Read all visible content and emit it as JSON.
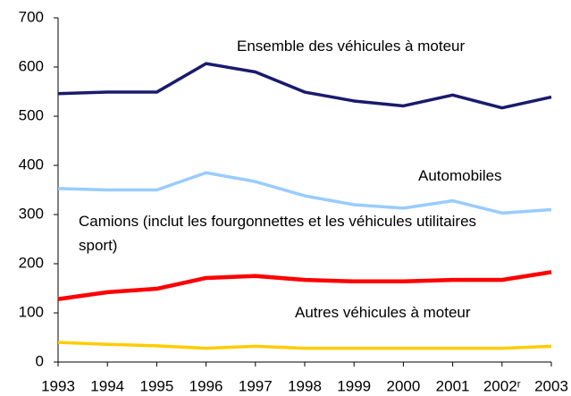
{
  "chart_data": {
    "type": "line",
    "categories": [
      "1993",
      "1994",
      "1995",
      "1996",
      "1997",
      "1998",
      "1999",
      "2000",
      "2001",
      "2002ʳ",
      "2003"
    ],
    "series": [
      {
        "name": "Ensemble des véhicules à moteur",
        "color": "#1a1a6e",
        "values": [
          546,
          549,
          549,
          607,
          590,
          549,
          531,
          521,
          543,
          517,
          539
        ]
      },
      {
        "name": "Automobiles",
        "color": "#99ccff",
        "values": [
          353,
          350,
          350,
          385,
          367,
          338,
          320,
          313,
          328,
          303,
          310
        ]
      },
      {
        "name": "Camions (inclut les fourgonnettes et les véhicules utilitaires sport)",
        "color": "#ff0000",
        "values": [
          128,
          142,
          149,
          171,
          175,
          167,
          164,
          164,
          167,
          167,
          183
        ]
      },
      {
        "name": "Autres véhicules à moteur",
        "color": "#ffcc00",
        "values": [
          40,
          36,
          33,
          28,
          32,
          28,
          28,
          28,
          28,
          28,
          32
        ]
      }
    ],
    "ylim": [
      0,
      700
    ],
    "yticks": [
      0,
      100,
      200,
      300,
      400,
      500,
      600,
      700
    ]
  }
}
